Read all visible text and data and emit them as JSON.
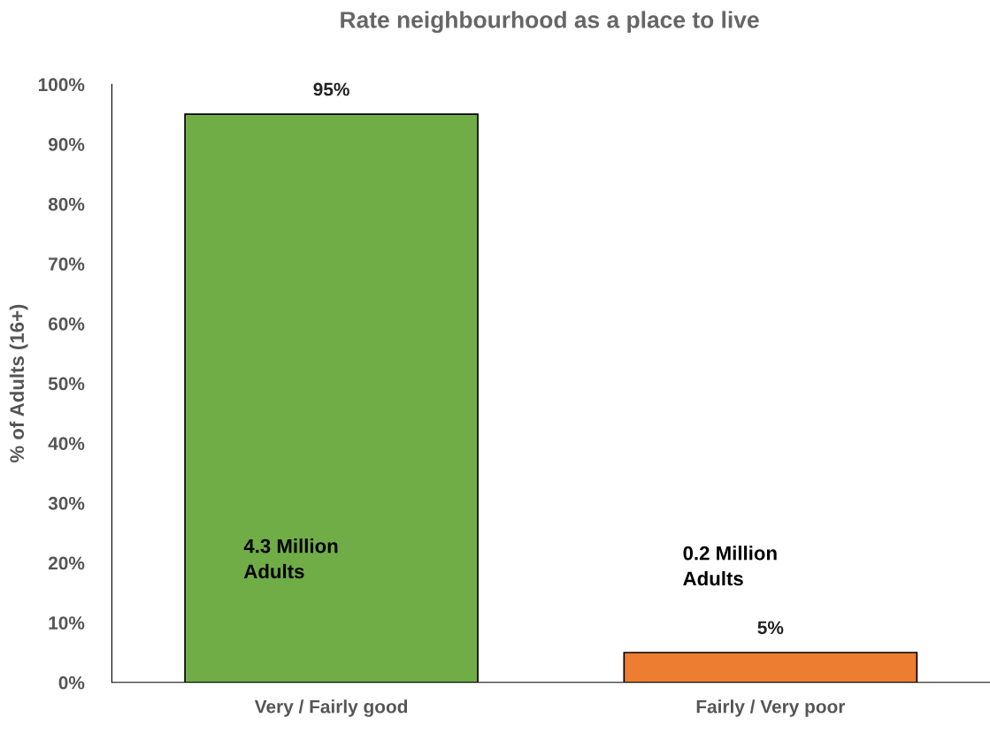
{
  "chart_data": {
    "type": "bar",
    "title": "Rate neighbourhood as a place to live",
    "ylabel": "% of Adults (16+)",
    "categories": [
      "Very / Fairly good",
      "Fairly / Very poor"
    ],
    "values": [
      95,
      5
    ],
    "colors": [
      "#70ad47",
      "#ed7d31"
    ],
    "value_labels": [
      "95%",
      "5%"
    ],
    "ylim": [
      0,
      100
    ],
    "yticks": [
      {
        "value": 0,
        "label": "0%"
      },
      {
        "value": 10,
        "label": "10%"
      },
      {
        "value": 20,
        "label": "20%"
      },
      {
        "value": 30,
        "label": "30%"
      },
      {
        "value": 40,
        "label": "40%"
      },
      {
        "value": 50,
        "label": "50%"
      },
      {
        "value": 60,
        "label": "60%"
      },
      {
        "value": 70,
        "label": "70%"
      },
      {
        "value": 80,
        "label": "80%"
      },
      {
        "value": 90,
        "label": "90%"
      },
      {
        "value": 100,
        "label": "100%"
      }
    ],
    "annotations": [
      "4.3 Million\nAdults",
      "0.2 Million\nAdults"
    ],
    "grid": false,
    "legend": false
  }
}
